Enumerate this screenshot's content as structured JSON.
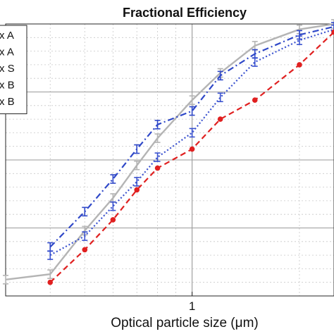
{
  "chart_data": {
    "type": "line",
    "title": "Fractional Efficiency",
    "xlabel": "Optical particle size (μm)",
    "ylabel": "",
    "x_scale": "log",
    "xlim": [
      0.3,
      2.5
    ],
    "ylim": [
      0,
      1
    ],
    "grid": true,
    "legend_position": "top-left",
    "x_tick_labels": [
      {
        "value": 1,
        "label": "1"
      }
    ],
    "series": [
      {
        "name": "A",
        "legend_text": "x A",
        "color": "#b4b4b4",
        "line_style": "solid",
        "marker": "errorbar",
        "x": [
          0.3,
          0.4,
          0.5,
          0.6,
          0.7,
          0.8,
          1.0,
          1.2,
          1.5,
          2.0,
          2.5
        ],
        "y": [
          0.06,
          0.08,
          0.24,
          0.36,
          0.48,
          0.58,
          0.72,
          0.82,
          0.92,
          0.98,
          1.0
        ]
      },
      {
        "name": "A",
        "legend_text": "x A",
        "color": "#2f48c8",
        "line_style": "dashdot",
        "marker": "errorbar",
        "x": [
          0.4,
          0.5,
          0.6,
          0.7,
          0.8,
          1.0,
          1.2,
          1.5,
          2.0,
          2.5
        ],
        "y": [
          0.18,
          0.31,
          0.43,
          0.54,
          0.63,
          0.68,
          0.81,
          0.89,
          0.96,
          0.99
        ]
      },
      {
        "name": "S",
        "legend_text": "x S",
        "color": "#3a52cf",
        "line_style": "dotted",
        "marker": "errorbar",
        "x": [
          0.4,
          0.5,
          0.6,
          0.7,
          0.8,
          1.0,
          1.2,
          1.5,
          2.0,
          2.5
        ],
        "y": [
          0.15,
          0.22,
          0.33,
          0.42,
          0.51,
          0.6,
          0.73,
          0.86,
          0.94,
          0.98
        ]
      },
      {
        "name": "B",
        "legend_text": "x B",
        "color": "#e02020",
        "line_style": "dashed",
        "marker": "circle",
        "x": [
          0.4,
          0.5,
          0.6,
          0.7,
          0.8,
          1.0,
          1.2,
          1.5,
          2.0,
          2.5
        ],
        "y": [
          0.05,
          0.17,
          0.28,
          0.39,
          0.47,
          0.54,
          0.65,
          0.72,
          0.85,
          0.97
        ]
      }
    ],
    "extra_legend_entries": [
      "x B"
    ]
  }
}
